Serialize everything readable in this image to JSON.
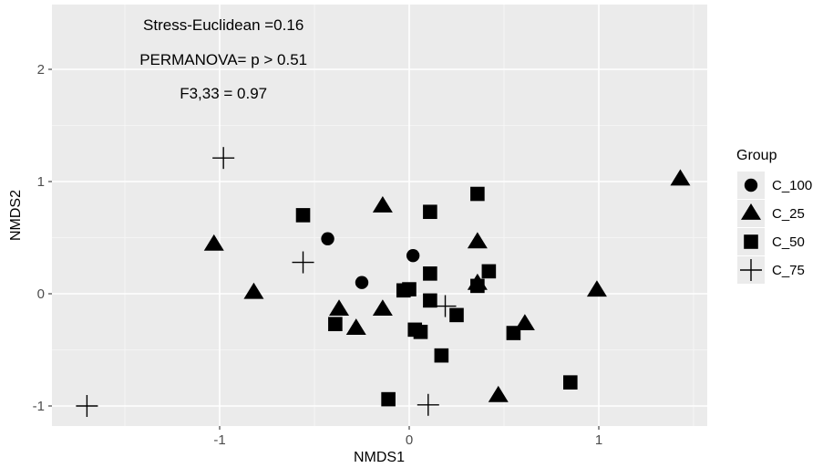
{
  "chart_data": {
    "type": "scatter",
    "title": "",
    "xlabel": "NMDS1",
    "ylabel": "NMDS2",
    "xlim": [
      -1.88,
      1.6
    ],
    "ylim": [
      -1.16,
      2.42
    ],
    "x_ticks": [
      -1,
      0,
      1
    ],
    "x_tick_labels": [
      "-1",
      "0",
      "1"
    ],
    "y_ticks": [
      -1,
      0,
      1,
      2
    ],
    "y_tick_labels": [
      "-1",
      "0",
      "1",
      "2"
    ],
    "grid": true,
    "legend": {
      "title": "Group",
      "position": "right"
    },
    "annotations": [
      {
        "text": "Stress-Euclidean =0.16",
        "x": -0.98,
        "y": 2.4
      },
      {
        "text": "PERMANOVA= p > 0.51",
        "x": -0.98,
        "y": 2.09
      },
      {
        "text": "F3,33 = 0.97",
        "x": -0.98,
        "y": 1.79
      }
    ],
    "series": [
      {
        "name": "C_100",
        "shape": "circle",
        "points": [
          [
            -0.43,
            0.49
          ],
          [
            -0.25,
            0.1
          ],
          [
            0.02,
            0.34
          ]
        ]
      },
      {
        "name": "C_25",
        "shape": "triangle",
        "points": [
          [
            1.43,
            1.02
          ],
          [
            -1.03,
            0.44
          ],
          [
            -0.82,
            0.01
          ],
          [
            -0.14,
            0.78
          ],
          [
            0.36,
            0.46
          ],
          [
            0.36,
            0.09
          ],
          [
            -0.37,
            -0.14
          ],
          [
            -0.14,
            -0.14
          ],
          [
            -0.28,
            -0.31
          ],
          [
            0.61,
            -0.27
          ],
          [
            0.99,
            0.03
          ],
          [
            0.47,
            -0.91
          ]
        ]
      },
      {
        "name": "C_50",
        "shape": "square",
        "points": [
          [
            -0.56,
            0.7
          ],
          [
            0.11,
            0.73
          ],
          [
            0.36,
            0.89
          ],
          [
            0.11,
            0.18
          ],
          [
            0.42,
            0.2
          ],
          [
            0.36,
            0.07
          ],
          [
            -0.03,
            0.03
          ],
          [
            0.0,
            0.04
          ],
          [
            0.11,
            -0.06
          ],
          [
            0.25,
            -0.19
          ],
          [
            -0.39,
            -0.27
          ],
          [
            0.03,
            -0.32
          ],
          [
            0.06,
            -0.34
          ],
          [
            0.17,
            -0.55
          ],
          [
            0.55,
            -0.35
          ],
          [
            0.85,
            -0.79
          ],
          [
            -0.11,
            -0.94
          ]
        ]
      },
      {
        "name": "C_75",
        "shape": "plus",
        "points": [
          [
            -0.98,
            1.21
          ],
          [
            -0.56,
            0.28
          ],
          [
            0.19,
            -0.11
          ],
          [
            0.1,
            -0.99
          ],
          [
            -1.7,
            -1.0
          ]
        ]
      }
    ]
  }
}
